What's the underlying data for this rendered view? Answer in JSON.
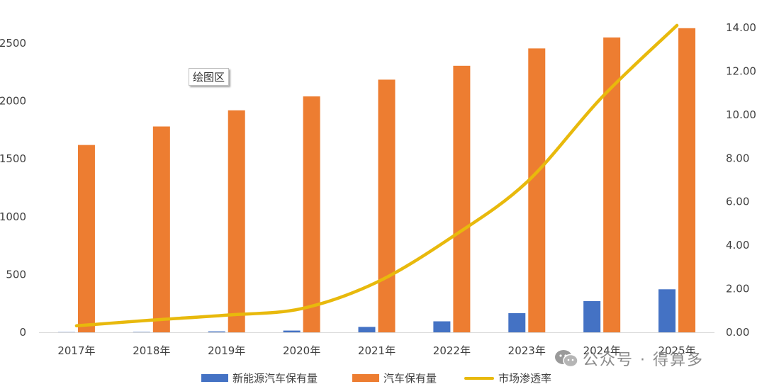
{
  "chart_data": {
    "type": "bar",
    "categories": [
      "2017年",
      "2018年",
      "2019年",
      "2020年",
      "2021年",
      "2022年",
      "2023年",
      "2024年",
      "2025年"
    ],
    "series": [
      {
        "name": "新能源汽车保有量",
        "type": "bar",
        "axis": "left",
        "color": "#4472C4",
        "values": [
          2,
          3,
          8,
          15,
          47,
          95,
          166,
          270,
          372
        ]
      },
      {
        "name": "汽车保有量",
        "type": "bar",
        "axis": "left",
        "color": "#ED7D31",
        "values": [
          1620,
          1780,
          1920,
          2040,
          2185,
          2305,
          2455,
          2550,
          2630
        ]
      },
      {
        "name": "市场渗透率",
        "type": "line",
        "axis": "right",
        "color": "#E8B90C",
        "values": [
          0.3,
          0.56,
          0.79,
          1.09,
          2.3,
          4.37,
          6.9,
          10.8,
          14.1
        ]
      }
    ],
    "y_left": {
      "min": 0,
      "max": 2500,
      "ticks": [
        "0",
        "500",
        "1000",
        "1500",
        "2000",
        "2500"
      ]
    },
    "y_right": {
      "min": 0,
      "max": 14,
      "ticks": [
        "0.00",
        "2.00",
        "4.00",
        "6.00",
        "8.00",
        "10.00",
        "12.00",
        "14.00"
      ]
    },
    "legend_position": "bottom",
    "grid": false
  },
  "tooltip": "绘图区",
  "watermark": "公众号 · 得算多"
}
